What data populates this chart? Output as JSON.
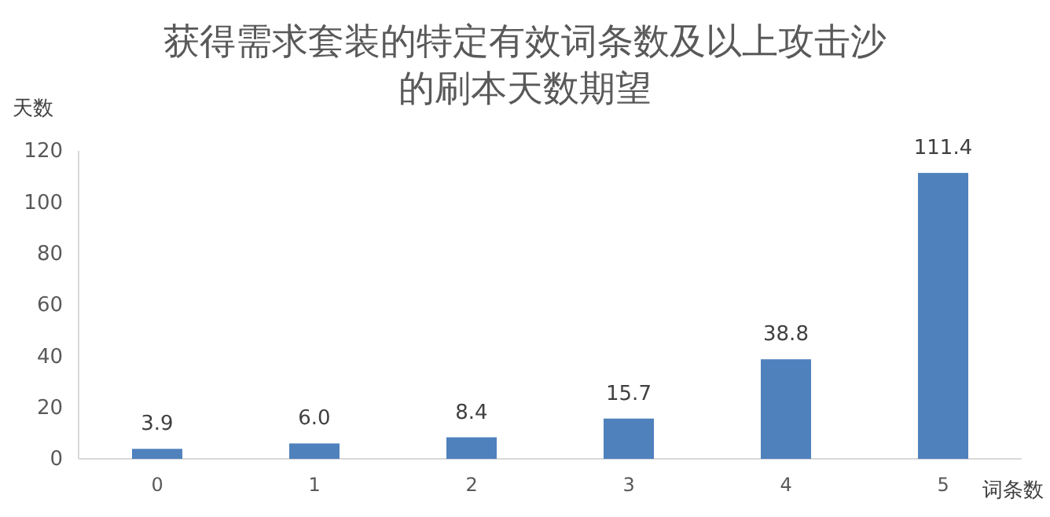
{
  "chart_data": {
    "type": "bar",
    "title": "获得需求套装的特定有效词条数及以上攻击沙的刷本天数期望",
    "ylabel": "天数",
    "xlabel": "词条数",
    "categories": [
      "0",
      "1",
      "2",
      "3",
      "4",
      "5"
    ],
    "values": [
      3.9,
      6.0,
      8.4,
      15.7,
      38.8,
      111.4
    ],
    "value_labels": [
      "3.9",
      "6.0",
      "8.4",
      "15.7",
      "38.8",
      "111.4"
    ],
    "color": "#4f81bd",
    "ylim": [
      0,
      120
    ],
    "yticks": [
      0,
      20,
      40,
      60,
      80,
      100,
      120
    ],
    "grid": false
  }
}
